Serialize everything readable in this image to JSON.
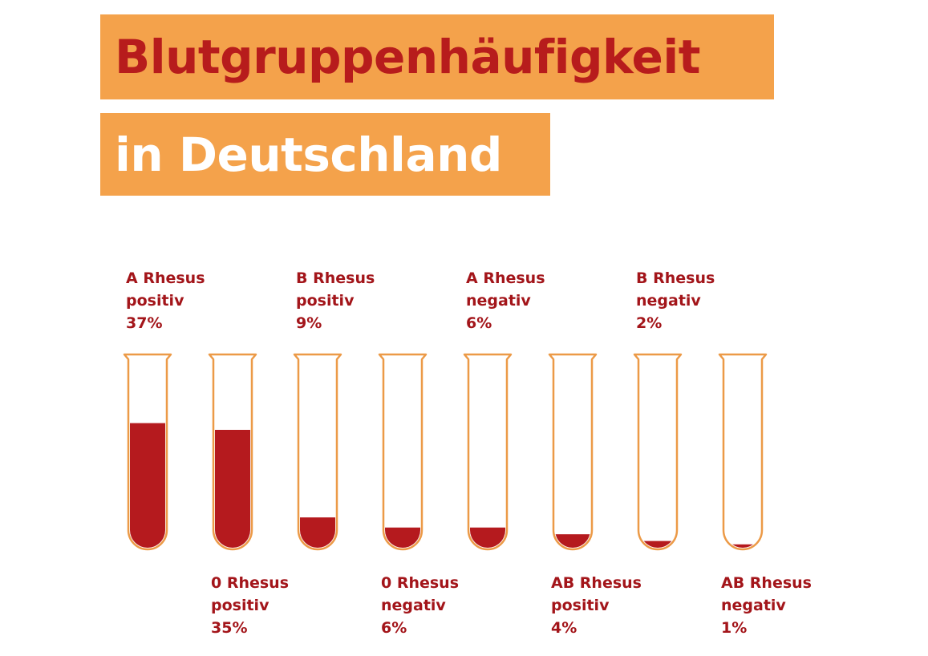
{
  "title": {
    "line1": "Blutgruppenhäufigkeit",
    "line2": "in Deutschland"
  },
  "colors": {
    "title_bg": "#f4a24b",
    "title_line1_text": "#b71c1c",
    "title_line2_text": "#ffffff",
    "label_text": "#a3151a",
    "tube_outline": "#ec9a47",
    "blood": "#b51a1e"
  },
  "chart_data": {
    "type": "bar",
    "unit": "%",
    "ylim": [
      0,
      100
    ],
    "categories": [
      {
        "line1": "A Rhesus",
        "line2": "positiv",
        "label": "37%",
        "value": 37
      },
      {
        "line1": "0 Rhesus",
        "line2": "positiv",
        "label": "35%",
        "value": 35
      },
      {
        "line1": "B Rhesus",
        "line2": "positiv",
        "label": "9%",
        "value": 9
      },
      {
        "line1": "0 Rhesus",
        "line2": "negativ",
        "label": "6%",
        "value": 6
      },
      {
        "line1": "A Rhesus",
        "line2": "negativ",
        "label": "6%",
        "value": 6
      },
      {
        "line1": "AB Rhesus",
        "line2": "positiv",
        "label": "4%",
        "value": 4
      },
      {
        "line1": "B Rhesus",
        "line2": "negativ",
        "label": "2%",
        "value": 2
      },
      {
        "line1": "AB Rhesus",
        "line2": "negativ",
        "label": "1%",
        "value": 1
      }
    ]
  }
}
